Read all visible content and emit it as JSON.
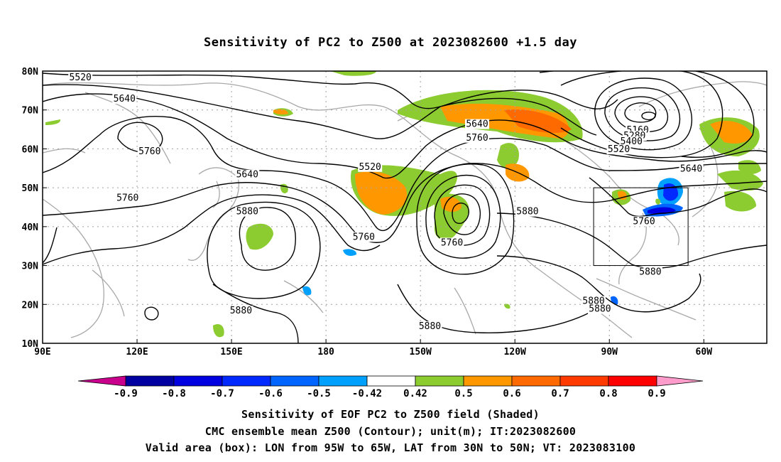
{
  "title": "Sensitivity of PC2 to Z500 at 2023082600 +1.5 day",
  "captions": [
    "Sensitivity of EOF PC2 to Z500 field (Shaded)",
    "CMC ensemble mean Z500 (Contour); unit(m); IT:2023082600",
    "Valid area (box): LON from 95W to 65W, LAT from 30N to 50N; VT: 2023083100"
  ],
  "map": {
    "lon_range": [
      90,
      320
    ],
    "lat_range": [
      10,
      80
    ],
    "lon_ticks": [
      {
        "lon": 90,
        "label": "90E"
      },
      {
        "lon": 120,
        "label": "120E"
      },
      {
        "lon": 150,
        "label": "150E"
      },
      {
        "lon": 180,
        "label": "180"
      },
      {
        "lon": 210,
        "label": "150W"
      },
      {
        "lon": 240,
        "label": "120W"
      },
      {
        "lon": 270,
        "label": "90W"
      },
      {
        "lon": 300,
        "label": "60W"
      }
    ],
    "lat_ticks": [
      {
        "lat": 80,
        "label": "80N"
      },
      {
        "lat": 70,
        "label": "70N"
      },
      {
        "lat": 60,
        "label": "60N"
      },
      {
        "lat": 50,
        "label": "50N"
      },
      {
        "lat": 40,
        "label": "40N"
      },
      {
        "lat": 30,
        "label": "30N"
      },
      {
        "lat": 20,
        "label": "20N"
      },
      {
        "lat": 10,
        "label": "10N"
      }
    ],
    "grid_lines": true,
    "valid_box": {
      "lon": [
        265,
        295
      ],
      "lat": [
        30,
        50
      ]
    },
    "contour_labels": [
      {
        "text": "5520",
        "lon": 102,
        "lat": 78
      },
      {
        "text": "5640",
        "lon": 116,
        "lat": 72.5
      },
      {
        "text": "5760",
        "lon": 124,
        "lat": 59
      },
      {
        "text": "5760",
        "lon": 117,
        "lat": 47
      },
      {
        "text": "5640",
        "lon": 155,
        "lat": 53
      },
      {
        "text": "5880",
        "lon": 155,
        "lat": 43.5
      },
      {
        "text": "5520",
        "lon": 194,
        "lat": 55
      },
      {
        "text": "5760",
        "lon": 192,
        "lat": 37
      },
      {
        "text": "5640",
        "lon": 228,
        "lat": 66
      },
      {
        "text": "5760",
        "lon": 228,
        "lat": 62.5
      },
      {
        "text": "5760",
        "lon": 220,
        "lat": 35.5
      },
      {
        "text": "5880",
        "lon": 244,
        "lat": 43.5
      },
      {
        "text": "5160",
        "lon": 279,
        "lat": 64.5
      },
      {
        "text": "5280",
        "lon": 278,
        "lat": 63
      },
      {
        "text": "5400",
        "lon": 277,
        "lat": 61.5
      },
      {
        "text": "5520",
        "lon": 273,
        "lat": 59.5
      },
      {
        "text": "5640",
        "lon": 296,
        "lat": 54.5
      },
      {
        "text": "5760",
        "lon": 281,
        "lat": 41
      },
      {
        "text": "5880",
        "lon": 283,
        "lat": 28
      },
      {
        "text": "5880",
        "lon": 265,
        "lat": 20.5
      },
      {
        "text": "5880",
        "lon": 267,
        "lat": 18.5
      },
      {
        "text": "5880",
        "lon": 153,
        "lat": 18
      },
      {
        "text": "5880",
        "lon": 213,
        "lat": 14
      }
    ]
  },
  "colorbar": {
    "labels": [
      "-0.9",
      "-0.8",
      "-0.7",
      "-0.6",
      "-0.5",
      "-0.42",
      "0.42",
      "0.5",
      "0.6",
      "0.7",
      "0.8",
      "0.9"
    ],
    "colors": [
      "#0000a0",
      "#0000e0",
      "#0028ff",
      "#0064ff",
      "#00a0ff",
      "#ffffff",
      "#8ccc30",
      "#ff9800",
      "#ff6a00",
      "#ff3a00",
      "#ff0000"
    ],
    "low_end_color": "#c8008c",
    "high_end_color": "#ff9ccc"
  }
}
